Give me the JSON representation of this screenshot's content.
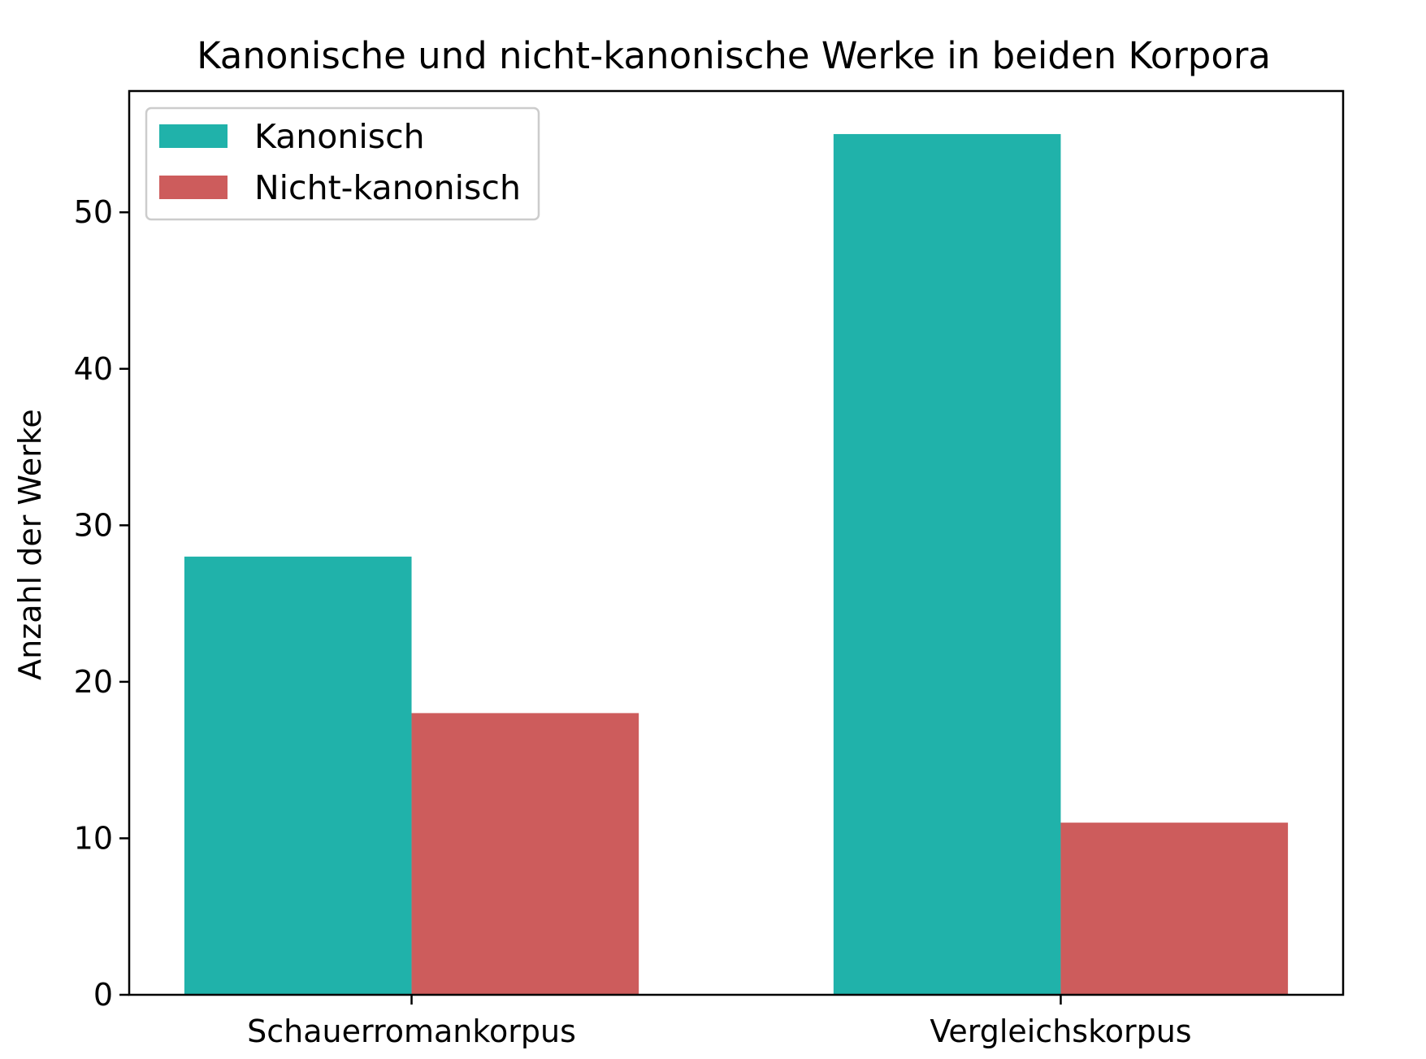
{
  "chart_data": {
    "type": "bar",
    "title": "Kanonische und nicht-kanonische Werke in beiden Korpora",
    "xlabel": "",
    "ylabel": "Anzahl der Werke",
    "categories": [
      "Schauerromankorpus",
      "Vergleichskorpus"
    ],
    "series": [
      {
        "name": "Kanonisch",
        "values": [
          28,
          55
        ],
        "color": "#20b2aa"
      },
      {
        "name": "Nicht-kanonisch",
        "values": [
          18,
          11
        ],
        "color": "#cd5c5c"
      }
    ],
    "ylim": [
      0,
      57.75
    ],
    "yticks": [
      0,
      10,
      20,
      30,
      40,
      50
    ],
    "grid": false,
    "legend_position": "top-left"
  }
}
